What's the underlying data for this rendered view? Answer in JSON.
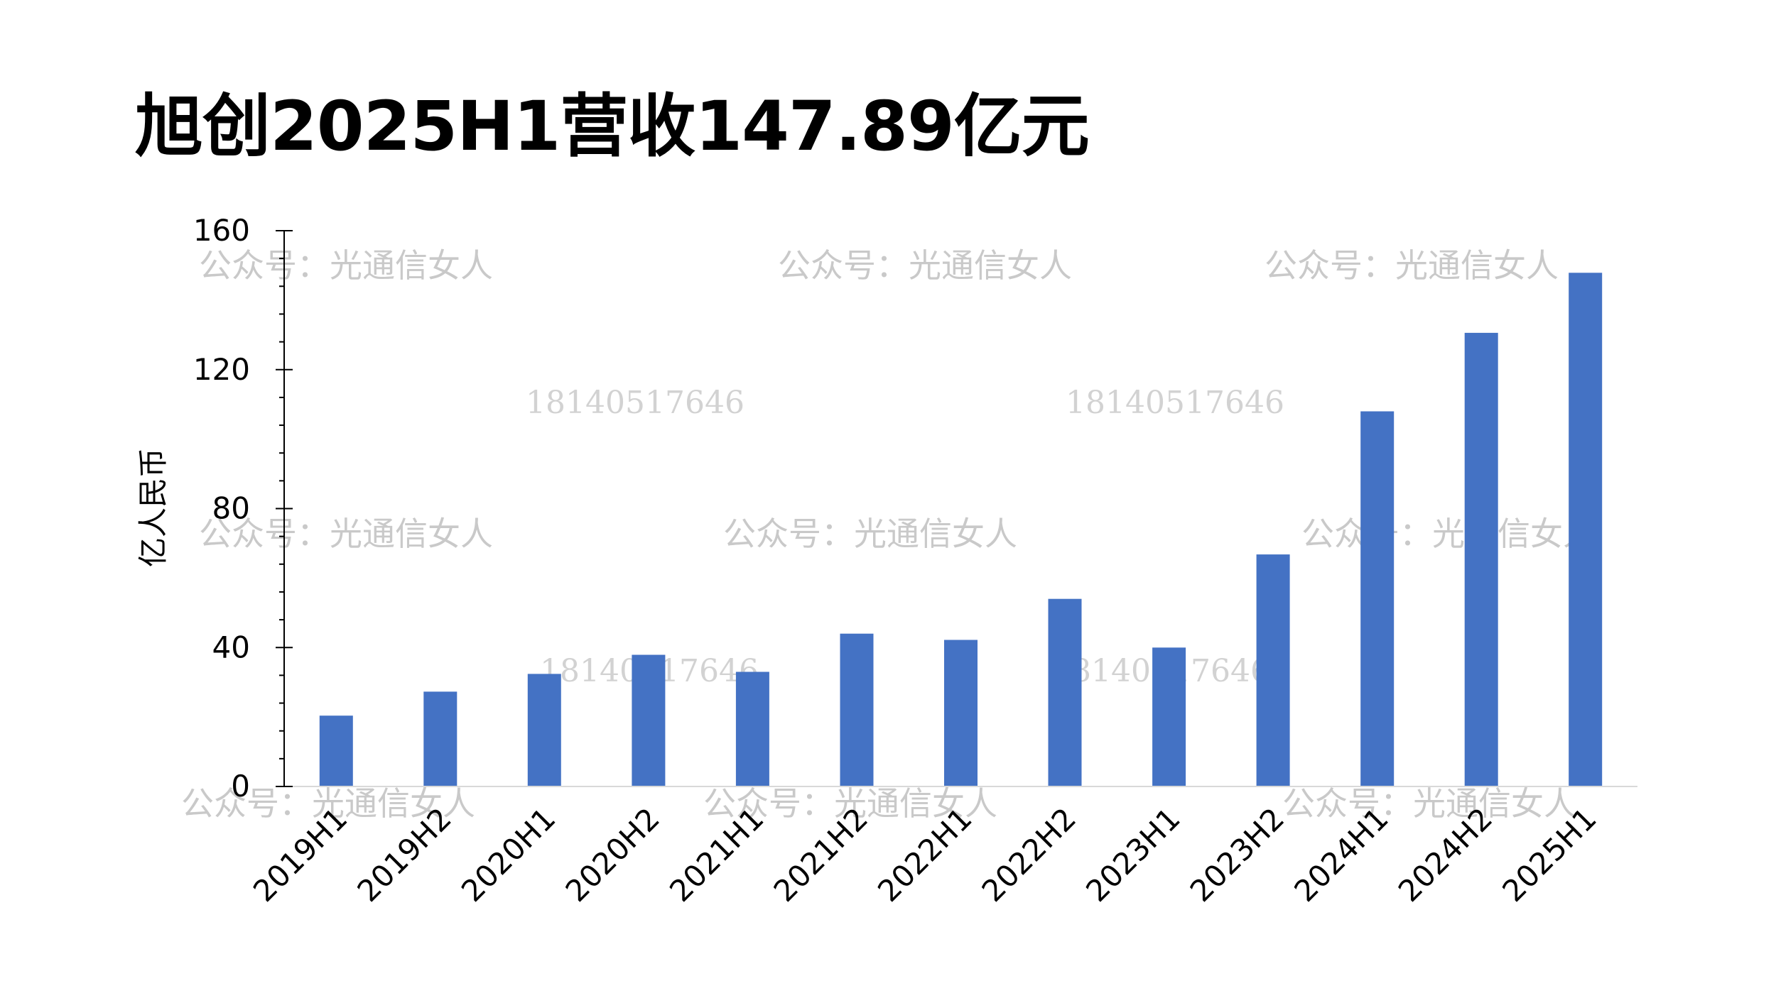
{
  "chart_data": {
    "type": "bar",
    "title": "旭创2025H1营收147.89亿元",
    "ylabel": "亿人民币",
    "xlabel": "",
    "ylim": [
      0,
      160
    ],
    "yticks": [
      0,
      40,
      80,
      120,
      160
    ],
    "categories": [
      "2019H1",
      "2019H2",
      "2020H1",
      "2020H2",
      "2021H1",
      "2021H2",
      "2022H1",
      "2022H2",
      "2023H1",
      "2023H2",
      "2024H1",
      "2024H2",
      "2025H1"
    ],
    "values": [
      20.4,
      27.3,
      32.4,
      37.9,
      33.0,
      44.0,
      42.2,
      54.0,
      40.0,
      66.8,
      108.0,
      130.6,
      147.89
    ],
    "bar_color": "#4472c4",
    "grid": false,
    "legend": "none"
  },
  "watermarks": {
    "text": "公众号：光通信女人",
    "number": "18140517646"
  }
}
